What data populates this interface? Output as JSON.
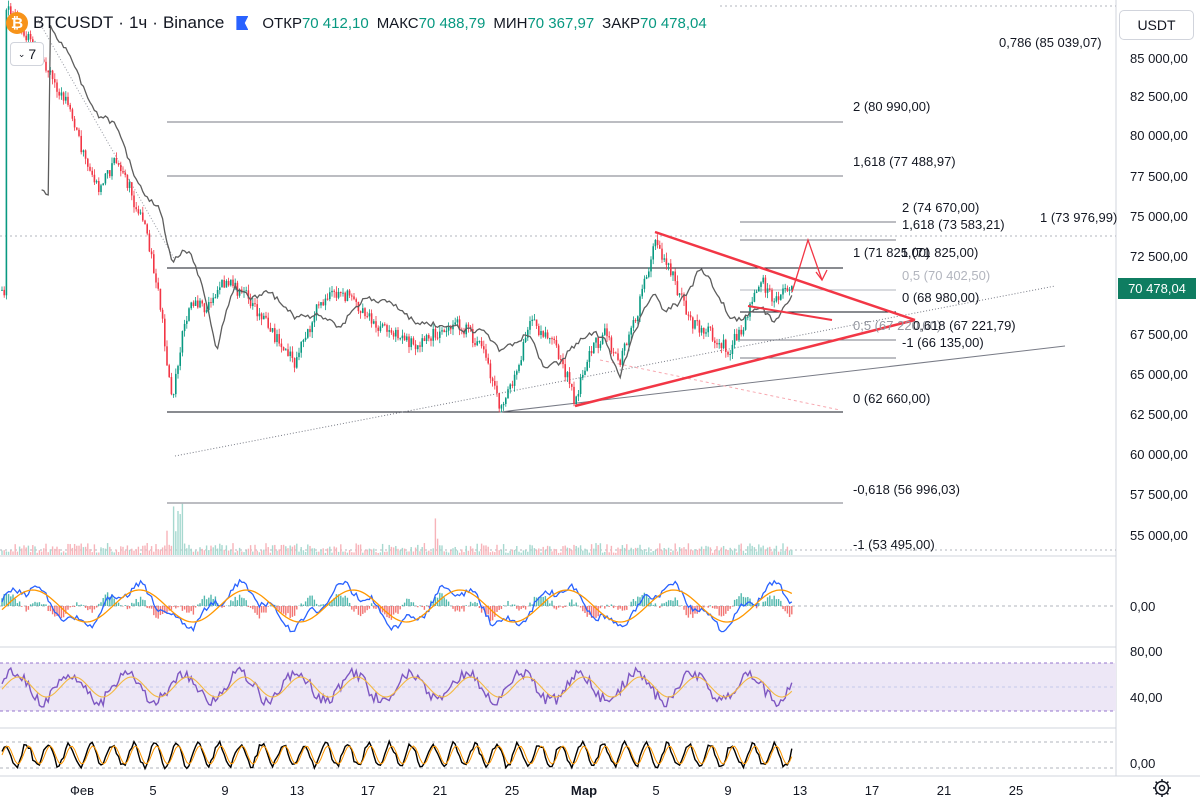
{
  "header": {
    "logo_glyph": "₿",
    "symbol": "BTCUSDT",
    "sep1": "·",
    "interval": "1ч",
    "sep2": "·",
    "exchange": "Binance",
    "open_label": "ОТКР",
    "open_value": "70 412,10",
    "high_label": "МАКС",
    "high_value": "70 488,79",
    "low_label": "МИН",
    "low_value": "70 367,97",
    "close_label": "ЗАКР",
    "close_value": "70 478,04",
    "flag_color": "#2962ff"
  },
  "indicator_count": "7",
  "currency": "USDT",
  "last_price": "70 478,04",
  "colors": {
    "up": "#089981",
    "down": "#f23645",
    "trendline": "#f23645",
    "ma": "#5d5d5d",
    "price_tag": "#0f7d61",
    "rsi_band": "#ede7f6",
    "rsi_line": "#7e57c2"
  },
  "price_axis": [
    "85 000,00",
    "82 500,00",
    "80 000,00",
    "77 500,00",
    "75 000,00",
    "72 500,00",
    "67 500,00",
    "65 000,00",
    "62 500,00",
    "60 000,00",
    "57 500,00",
    "55 000,00"
  ],
  "macd_axis": [
    "0,00"
  ],
  "rsi_axis": [
    "80,00",
    "40,00"
  ],
  "stoch_axis": [
    "0,00"
  ],
  "time_axis": [
    "Фев",
    "5",
    "9",
    "13",
    "17",
    "21",
    "25",
    "Мар",
    "5",
    "9",
    "13",
    "17",
    "21",
    "25"
  ],
  "fib_labels": [
    "0,786 (85 039,07)",
    "2 (80 990,00)",
    "1,618 (77 488,97)",
    "2 (74 670,00)",
    "1,618 (73 583,21)",
    "1 (73 976,99)",
    "1 (71 825,00)",
    "1 (71 825,00)",
    "0,5 (70 402,50)",
    "0 (68 980,00)",
    "0,5 (67 220,00)",
    "0,618 (67 221,79)",
    "-1 (66 135,00)",
    "0 (62 660,00)",
    "-0,618 (56 996,03)",
    "-1 (53 495,00)"
  ],
  "icons": {
    "settings": "settings-gear-icon"
  }
}
